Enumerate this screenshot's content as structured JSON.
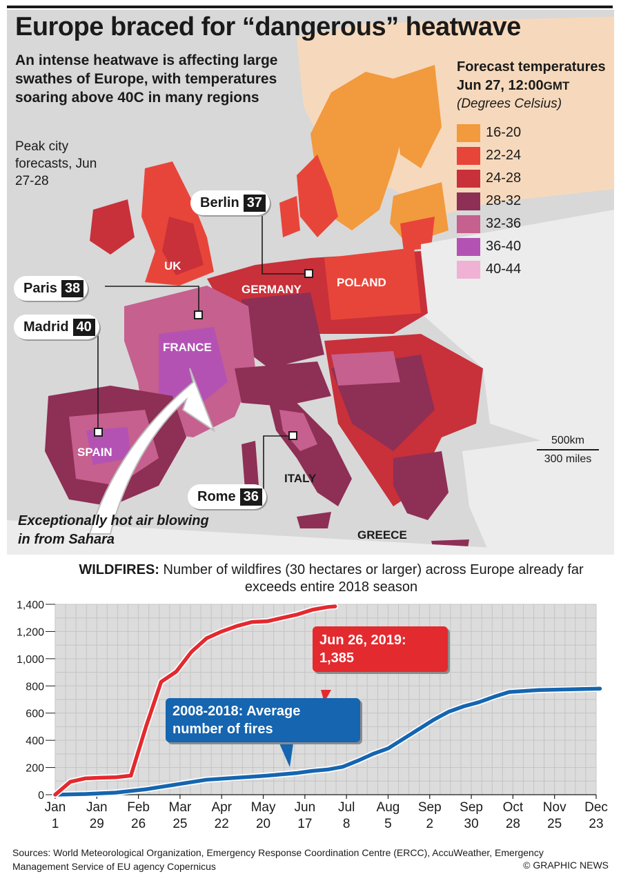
{
  "header": {
    "title": "Europe braced for “dangerous” heatwave",
    "subtitle": "An intense heatwave is affecting large swathes of Europe, with temperatures soaring above 40C in many regions",
    "peak_label": "Peak city forecasts, Jun 27-28"
  },
  "legend": {
    "title": "Forecast temperatures Jun 27, 12:00",
    "title_suffix": "GMT",
    "unit": "(Degrees Celsius)",
    "items": [
      {
        "label": "16-20",
        "color": "#f29a3e"
      },
      {
        "label": "22-24",
        "color": "#e8453a"
      },
      {
        "label": "24-28",
        "color": "#c8303a"
      },
      {
        "label": "28-32",
        "color": "#8e2f55"
      },
      {
        "label": "32-36",
        "color": "#c6608e"
      },
      {
        "label": "36-40",
        "color": "#b452b4"
      },
      {
        "label": "40-44",
        "color": "#f0b2d4"
      }
    ]
  },
  "map": {
    "countries": [
      "UK",
      "GERMANY",
      "POLAND",
      "FRANCE",
      "SPAIN",
      "ITALY",
      "GREECE"
    ],
    "cities": [
      {
        "name": "Berlin",
        "temp": "37"
      },
      {
        "name": "Paris",
        "temp": "38"
      },
      {
        "name": "Madrid",
        "temp": "40"
      },
      {
        "name": "Rome",
        "temp": "36"
      }
    ],
    "sahara_note": "Exceptionally hot air blowing in from Sahara",
    "scale_km": "500km",
    "scale_miles": "300 miles"
  },
  "chart_heading": {
    "lead": "WILDFIRES:",
    "text": " Number of wildfires (30 hectares or larger) across Europe already far exceeds entire 2018 season"
  },
  "chart_data": {
    "type": "line",
    "x_tick_labels": [
      "Jan 1",
      "Jan 29",
      "Feb 26",
      "Mar 25",
      "Apr 22",
      "May 20",
      "Jun 17",
      "Jul 8",
      "Aug 5",
      "Sep 2",
      "Sep 30",
      "Oct 28",
      "Nov 25",
      "Dec 23"
    ],
    "y_ticks": [
      "0",
      "200",
      "400",
      "600",
      "800",
      "1,000",
      "1,200",
      "1,400"
    ],
    "ylim": [
      0,
      1400
    ],
    "grid": true,
    "series": [
      {
        "name": "Jun 26, 2019: 1,385",
        "color": "#e32a2f",
        "points": [
          [
            0,
            0
          ],
          [
            1,
            95
          ],
          [
            2,
            120
          ],
          [
            3,
            125
          ],
          [
            4,
            128
          ],
          [
            5,
            140
          ],
          [
            6,
            500
          ],
          [
            7,
            830
          ],
          [
            8,
            905
          ],
          [
            9,
            1050
          ],
          [
            10,
            1150
          ],
          [
            11,
            1200
          ],
          [
            12,
            1240
          ],
          [
            13,
            1270
          ],
          [
            14,
            1275
          ],
          [
            15,
            1300
          ],
          [
            16,
            1325
          ],
          [
            17,
            1360
          ],
          [
            18,
            1380
          ],
          [
            18.5,
            1385
          ]
        ]
      },
      {
        "name": "2008-2018: Average number of fires",
        "color": "#1565b0",
        "points": [
          [
            0,
            0
          ],
          [
            2,
            5
          ],
          [
            4,
            15
          ],
          [
            6,
            40
          ],
          [
            8,
            75
          ],
          [
            10,
            110
          ],
          [
            12,
            125
          ],
          [
            14,
            140
          ],
          [
            16,
            160
          ],
          [
            17,
            175
          ],
          [
            18,
            185
          ],
          [
            19,
            205
          ],
          [
            20,
            250
          ],
          [
            21,
            300
          ],
          [
            22,
            340
          ],
          [
            23,
            410
          ],
          [
            24,
            480
          ],
          [
            25,
            550
          ],
          [
            26,
            610
          ],
          [
            27,
            650
          ],
          [
            28,
            680
          ],
          [
            29,
            720
          ],
          [
            30,
            755
          ],
          [
            32,
            770
          ],
          [
            36,
            780
          ]
        ]
      }
    ]
  },
  "footer": {
    "sources": "Sources: World Meteorological Organization, Emergency Response Coordination Centre (ERCC), AccuWeather, Emergency Management Service of EU agency Copernicus",
    "credit": "© GRAPHIC NEWS"
  }
}
